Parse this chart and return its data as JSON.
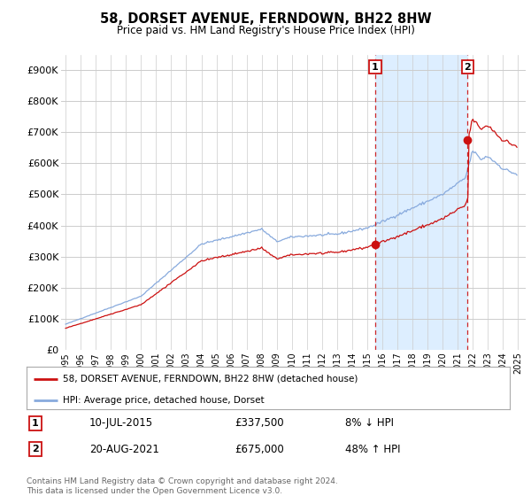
{
  "title": "58, DORSET AVENUE, FERNDOWN, BH22 8HW",
  "subtitle": "Price paid vs. HM Land Registry's House Price Index (HPI)",
  "bg_color": "#ffffff",
  "plot_bg_color": "#ffffff",
  "shade_color": "#ddeeff",
  "grid_color": "#cccccc",
  "hpi_color": "#88aadd",
  "price_color": "#cc1111",
  "sale1_x": 2015.53,
  "sale2_x": 2021.64,
  "sale1_price": 337500,
  "sale2_price": 675000,
  "legend_label1": "58, DORSET AVENUE, FERNDOWN, BH22 8HW (detached house)",
  "legend_label2": "HPI: Average price, detached house, Dorset",
  "annotation1_date": "10-JUL-2015",
  "annotation1_price": "£337,500",
  "annotation1_hpi": "8% ↓ HPI",
  "annotation2_date": "20-AUG-2021",
  "annotation2_price": "£675,000",
  "annotation2_hpi": "48% ↑ HPI",
  "footer": "Contains HM Land Registry data © Crown copyright and database right 2024.\nThis data is licensed under the Open Government Licence v3.0.",
  "yticks": [
    0,
    100000,
    200000,
    300000,
    400000,
    500000,
    600000,
    700000,
    800000,
    900000
  ],
  "ytick_labels": [
    "£0",
    "£100K",
    "£200K",
    "£300K",
    "£400K",
    "£500K",
    "£600K",
    "£700K",
    "£800K",
    "£900K"
  ],
  "ylim": [
    0,
    950000
  ],
  "xlim_left": 1994.7,
  "xlim_right": 2025.5
}
